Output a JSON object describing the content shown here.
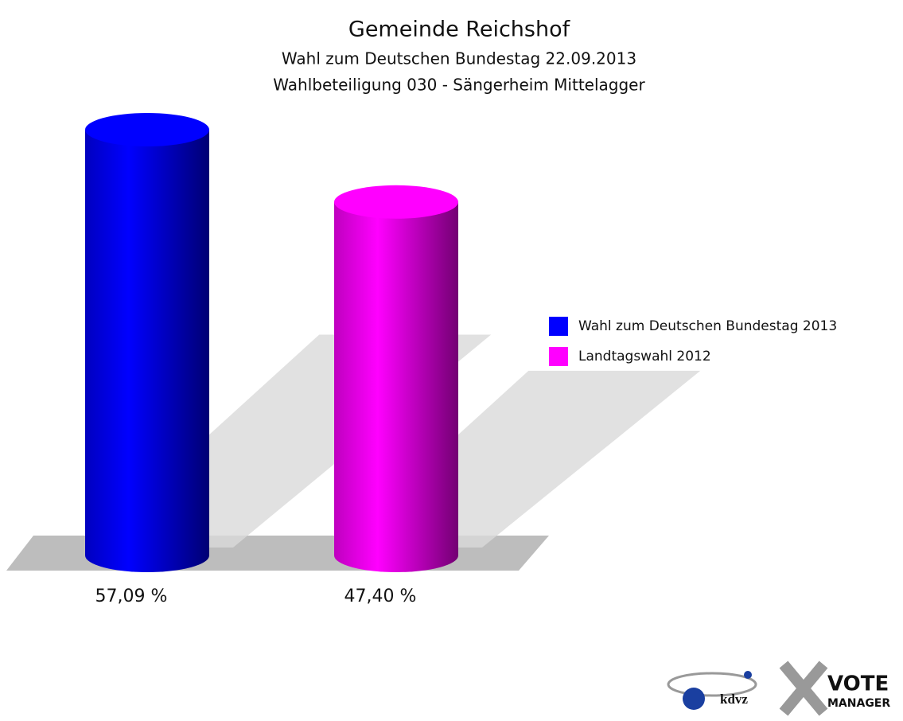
{
  "chart_data": {
    "type": "bar",
    "title": "Gemeinde Reichshof",
    "subtitle": [
      "Wahl zum Deutschen Bundestag 22.09.2013",
      "Wahlbeteiligung 030 - Sängerheim Mittelagger"
    ],
    "categories": [
      "Wahl zum Deutschen Bundestag 2013",
      "Landtagswahl 2012"
    ],
    "values": [
      57.09,
      47.4
    ],
    "value_labels": [
      "57,09 %",
      "47,40 %"
    ],
    "colors": [
      "#0000ff",
      "#ff00ff"
    ]
  },
  "logo": [
    "kdvz",
    "VOTE",
    "MANAGER"
  ]
}
